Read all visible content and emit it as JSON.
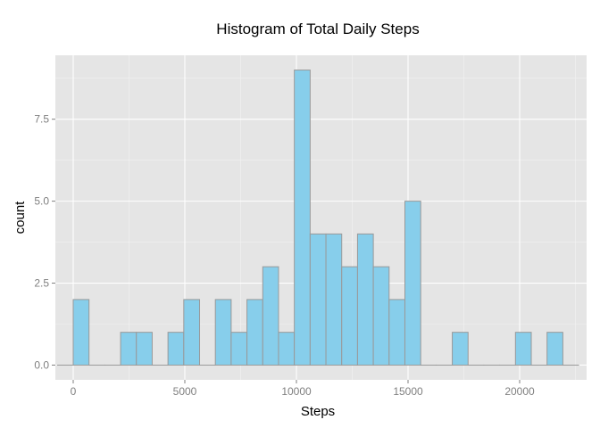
{
  "chart_data": {
    "type": "bar",
    "title": "Histogram of Total Daily Steps",
    "xlabel": "Steps",
    "ylabel": "count",
    "xlim": [
      -800,
      23000
    ],
    "ylim": [
      -0.45,
      9.45
    ],
    "x_ticks": [
      0,
      5000,
      10000,
      15000,
      20000
    ],
    "x_tick_labels": [
      "0",
      "5000",
      "10000",
      "15000",
      "20000"
    ],
    "y_ticks": [
      0,
      2.5,
      5,
      7.5
    ],
    "y_tick_labels": [
      "0.0",
      "2.5",
      "5.0",
      "7.5"
    ],
    "bin_width": 707.6,
    "bins": [
      {
        "x0": -707.6,
        "count": 0
      },
      {
        "x0": 0,
        "count": 2
      },
      {
        "x0": 707.6,
        "count": 0
      },
      {
        "x0": 1415.2,
        "count": 0
      },
      {
        "x0": 2122.8,
        "count": 1
      },
      {
        "x0": 2830.4,
        "count": 1
      },
      {
        "x0": 3538.0,
        "count": 0
      },
      {
        "x0": 4245.6,
        "count": 1
      },
      {
        "x0": 4953.2,
        "count": 2
      },
      {
        "x0": 5660.8,
        "count": 0
      },
      {
        "x0": 6368.4,
        "count": 2
      },
      {
        "x0": 7076.0,
        "count": 1
      },
      {
        "x0": 7783.6,
        "count": 2
      },
      {
        "x0": 8491.2,
        "count": 3
      },
      {
        "x0": 9198.8,
        "count": 1
      },
      {
        "x0": 9906.4,
        "count": 9
      },
      {
        "x0": 10614.0,
        "count": 4
      },
      {
        "x0": 11321.6,
        "count": 4
      },
      {
        "x0": 12029.2,
        "count": 3
      },
      {
        "x0": 12736.8,
        "count": 4
      },
      {
        "x0": 13444.4,
        "count": 3
      },
      {
        "x0": 14152.0,
        "count": 2
      },
      {
        "x0": 14859.6,
        "count": 5
      },
      {
        "x0": 15567.2,
        "count": 0
      },
      {
        "x0": 16274.8,
        "count": 0
      },
      {
        "x0": 16982.4,
        "count": 1
      },
      {
        "x0": 17690.0,
        "count": 0
      },
      {
        "x0": 18397.6,
        "count": 0
      },
      {
        "x0": 19105.2,
        "count": 0
      },
      {
        "x0": 19812.8,
        "count": 1
      },
      {
        "x0": 20520.4,
        "count": 0
      },
      {
        "x0": 21228.0,
        "count": 1
      },
      {
        "x0": 21935.6,
        "count": 0
      }
    ],
    "grid": true,
    "colors": {
      "panel": "#e5e5e5",
      "grid_major": "#ffffff",
      "grid_minor": "#f2f2f2",
      "bar_fill": "#87ceeb",
      "bar_stroke": "#999999"
    }
  }
}
